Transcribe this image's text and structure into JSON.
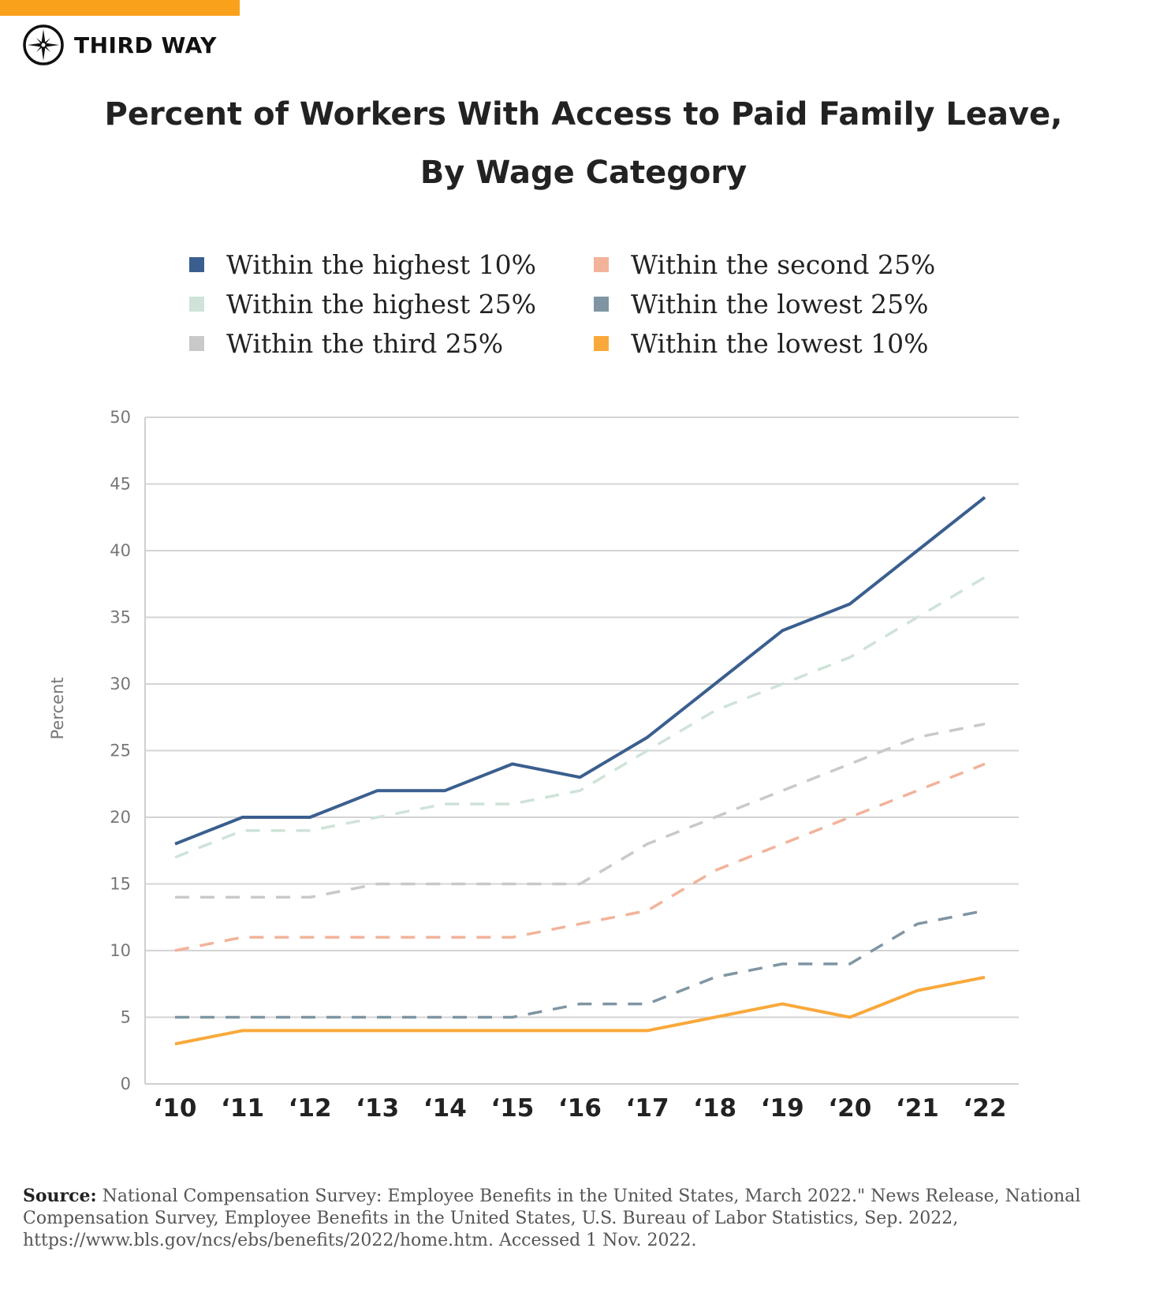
{
  "brand": {
    "name": "THIRD WAY",
    "accent": "#F9A11B"
  },
  "chart_data": {
    "type": "line",
    "title": [
      "Percent of Workers With Access to Paid Family Leave,",
      "By Wage Category"
    ],
    "ylabel": "Percent",
    "xlabel": "",
    "ylim": [
      0,
      50
    ],
    "yticks": [
      0,
      5,
      10,
      15,
      20,
      25,
      30,
      35,
      40,
      45,
      50
    ],
    "categories": [
      "‘10",
      "‘11",
      "‘12",
      "‘13",
      "‘14",
      "‘15",
      "‘16",
      "‘17",
      "‘18",
      "‘19",
      "‘20",
      "‘21",
      "‘22"
    ],
    "grid": true,
    "legend_placement": "top",
    "series": [
      {
        "name": "Within the highest 10%",
        "color": "#3A5F8F",
        "dashed": false,
        "values": [
          18,
          20,
          20,
          22,
          22,
          24,
          23,
          26,
          30,
          34,
          36,
          40,
          44
        ]
      },
      {
        "name": "Within the highest 25%",
        "color": "#CFE3D8",
        "dashed": true,
        "values": [
          17,
          19,
          19,
          20,
          21,
          21,
          22,
          25,
          28,
          30,
          32,
          35,
          38
        ]
      },
      {
        "name": "Within the third 25%",
        "color": "#C9C9C9",
        "dashed": true,
        "values": [
          14,
          14,
          14,
          15,
          15,
          15,
          15,
          18,
          20,
          22,
          24,
          26,
          27
        ]
      },
      {
        "name": "Within the second 25%",
        "color": "#F2B39A",
        "dashed": true,
        "values": [
          10,
          11,
          11,
          11,
          11,
          11,
          12,
          13,
          16,
          18,
          20,
          22,
          24
        ]
      },
      {
        "name": "Within the lowest 25%",
        "color": "#7F95A3",
        "dashed": true,
        "values": [
          5,
          5,
          5,
          5,
          5,
          5,
          6,
          6,
          8,
          9,
          9,
          12,
          13
        ]
      },
      {
        "name": "Within the lowest 10%",
        "color": "#F9A93B",
        "dashed": false,
        "values": [
          3,
          4,
          4,
          4,
          4,
          4,
          4,
          4,
          5,
          6,
          5,
          7,
          8
        ]
      }
    ]
  },
  "source": {
    "label": "Source:",
    "text": "National Compensation Survey: Employee Benefits in the United States, March 2022.\" News Release, National Compensation Survey, Employee Benefits in the United States, U.S. Bureau of Labor Statistics, Sep. 2022, https://www.bls.gov/ncs/ebs/benefits/2022/home.htm. Accessed 1 Nov. 2022."
  }
}
